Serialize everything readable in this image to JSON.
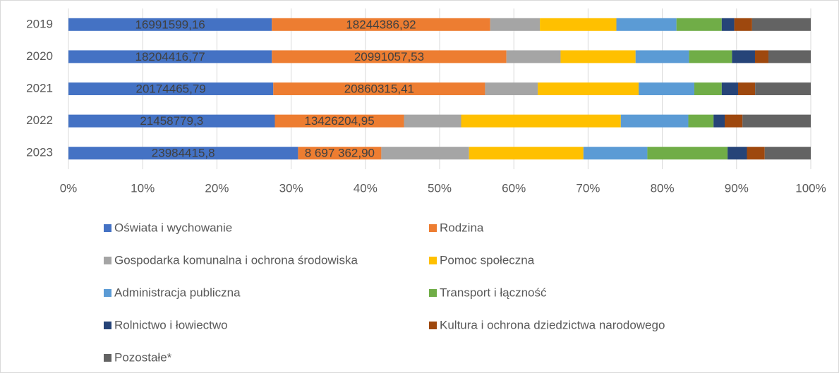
{
  "chart_data": {
    "type": "bar",
    "orientation": "horizontal",
    "stacking": "percent",
    "categories": [
      "2019",
      "2020",
      "2021",
      "2022",
      "2023"
    ],
    "xlim": [
      0,
      100
    ],
    "xticks": [
      {
        "value": 0,
        "label": "0%"
      },
      {
        "value": 10,
        "label": "10%"
      },
      {
        "value": 20,
        "label": "20%"
      },
      {
        "value": 30,
        "label": "30%"
      },
      {
        "value": 40,
        "label": "40%"
      },
      {
        "value": 50,
        "label": "50%"
      },
      {
        "value": 60,
        "label": "60%"
      },
      {
        "value": 70,
        "label": "70%"
      },
      {
        "value": 80,
        "label": "80%"
      },
      {
        "value": 90,
        "label": "90%"
      },
      {
        "value": 100,
        "label": "100%"
      }
    ],
    "grid": true,
    "legend": "bottom",
    "series": [
      {
        "name": "Oświata i wychowanie",
        "color": "#4472c4",
        "values": [
          16991599.16,
          18204416.77,
          20174465.79,
          21458779.3,
          23984415.8
        ],
        "value_labels": [
          "16991599,16",
          "18204416,77",
          "20174465,79",
          "21458779,3",
          "23984415,8"
        ]
      },
      {
        "name": "Rodzina",
        "color": "#ed7d31",
        "values": [
          18244386.92,
          20991057.53,
          20860315.41,
          13426204.95,
          8697362.9
        ],
        "value_labels": [
          "18244386,92",
          "20991057,53",
          "20860315,41",
          "13426204,95",
          "8 697 362,90"
        ]
      },
      {
        "name": "Gospodarka komunalna i ochrona środowiska",
        "color": "#a5a5a5",
        "values": [
          4150000,
          4850000,
          5190000,
          5940000,
          9160000
        ]
      },
      {
        "name": "Pomoc społeczna",
        "color": "#ffc000",
        "values": [
          6390000,
          6710000,
          9940000,
          16600000,
          11950000
        ]
      },
      {
        "name": "Administracja publiczna",
        "color": "#5b9bd5",
        "values": [
          5020000,
          4780000,
          5480000,
          7020000,
          6680000
        ]
      },
      {
        "name": "Transport i łączność",
        "color": "#70ad47",
        "values": [
          3780000,
          3850000,
          2700000,
          2620000,
          8380000
        ]
      },
      {
        "name": "Rolnictwo i łowiectwo",
        "color": "#264478",
        "values": [
          1050000,
          2060000,
          1610000,
          1160000,
          2020000
        ]
      },
      {
        "name": "Kultura i ochrona dziedzictwa narodowego",
        "color": "#9e480e",
        "values": [
          1490000,
          1200000,
          1680000,
          1850000,
          1860000
        ]
      },
      {
        "name": "Pozostałe*",
        "color": "#636363",
        "values": [
          4900000,
          3790000,
          5480000,
          7100000,
          4810000
        ]
      }
    ]
  }
}
